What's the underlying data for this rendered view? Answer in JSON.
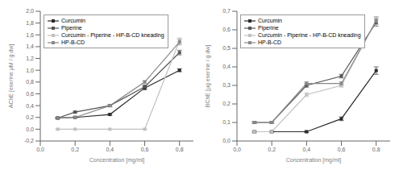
{
  "chart_data": [
    {
      "type": "line",
      "x_label": "Concentration [mg/ml]",
      "y_label": "AChE [eserine μM / g dw]",
      "x": [
        0.1,
        0.2,
        0.4,
        0.6,
        0.8
      ],
      "xlim": [
        0.0,
        0.88
      ],
      "xticks": [
        {
          "value": 0.0,
          "label": "0,0"
        },
        {
          "value": 0.2,
          "label": "0,2"
        },
        {
          "value": 0.4,
          "label": "0,4"
        },
        {
          "value": 0.6,
          "label": "0,6"
        },
        {
          "value": 0.8,
          "label": "0,8"
        }
      ],
      "ylim": [
        -0.2,
        2.0
      ],
      "yticks": [
        {
          "value": -0.2,
          "label": "-0,2"
        },
        {
          "value": 0.0,
          "label": "0,0"
        },
        {
          "value": 0.2,
          "label": "0,2"
        },
        {
          "value": 0.4,
          "label": "0,4"
        },
        {
          "value": 0.6,
          "label": "0,6"
        },
        {
          "value": 0.8,
          "label": "0,8"
        },
        {
          "value": 1.0,
          "label": "1,0"
        },
        {
          "value": 1.2,
          "label": "1,2"
        },
        {
          "value": 1.4,
          "label": "1,4"
        },
        {
          "value": 1.6,
          "label": "1,6"
        },
        {
          "value": 1.8,
          "label": "1,8"
        },
        {
          "value": 2.0,
          "label": "2,0"
        }
      ],
      "grid": false,
      "legend": "upper left",
      "series": [
        {
          "name": "Curcumin",
          "color": "#2b2b2b",
          "marker": "square",
          "line_style": "solid",
          "values": [
            0.19,
            0.2,
            0.25,
            0.7,
            1.0
          ],
          "yerr": [
            0.01,
            0.01,
            0.015,
            0.03,
            0.025
          ]
        },
        {
          "name": "Piperine",
          "color": "#555555",
          "marker": "square",
          "line_style": "solid",
          "values": [
            0.19,
            0.29,
            0.4,
            0.72,
            1.3
          ],
          "yerr": [
            0.01,
            0.015,
            0.02,
            0.03,
            0.04
          ]
        },
        {
          "name": "Curcumin - Piperine - HP-B-CD kneading",
          "color": "#c0c0c0",
          "marker": "square",
          "line_style": "solid",
          "values": [
            0.0,
            0.0,
            0.0,
            0.0,
            1.5
          ],
          "yerr": [
            0.003,
            0.003,
            0.003,
            0.003,
            0.05
          ]
        },
        {
          "name": "HP-B-CD",
          "color": "#888888",
          "marker": "square",
          "line_style": "solid",
          "values": [
            0.19,
            0.2,
            0.4,
            0.8,
            1.48
          ],
          "yerr": [
            0.01,
            0.01,
            0.015,
            0.025,
            0.05
          ]
        }
      ]
    },
    {
      "type": "line",
      "x_label": "Concentration [mg/ml]",
      "y_label": "BChE [μg eserine / g dw]",
      "x": [
        0.1,
        0.2,
        0.4,
        0.6,
        0.8
      ],
      "xlim": [
        0.0,
        0.88
      ],
      "xticks": [
        {
          "value": 0.0,
          "label": "0,0"
        },
        {
          "value": 0.2,
          "label": "0,2"
        },
        {
          "value": 0.4,
          "label": "0,4"
        },
        {
          "value": 0.6,
          "label": "0,6"
        },
        {
          "value": 0.8,
          "label": "0,8"
        }
      ],
      "ylim": [
        0.0,
        0.7
      ],
      "yticks": [
        {
          "value": 0.0,
          "label": "0,0"
        },
        {
          "value": 0.1,
          "label": "0,1"
        },
        {
          "value": 0.2,
          "label": "0,2"
        },
        {
          "value": 0.3,
          "label": "0,3"
        },
        {
          "value": 0.4,
          "label": "0,4"
        },
        {
          "value": 0.5,
          "label": "0,5"
        },
        {
          "value": 0.6,
          "label": "0,6"
        },
        {
          "value": 0.7,
          "label": "0,7"
        }
      ],
      "grid": false,
      "legend": "upper left",
      "series": [
        {
          "name": "Curcumin",
          "color": "#2b2b2b",
          "marker": "square",
          "line_style": "solid",
          "values": [
            0.05,
            0.05,
            0.05,
            0.12,
            0.38
          ],
          "yerr": [
            0.005,
            0.005,
            0.005,
            0.01,
            0.02
          ]
        },
        {
          "name": "Piperine",
          "color": "#555555",
          "marker": "square",
          "line_style": "solid",
          "values": [
            0.1,
            0.1,
            0.3,
            0.35,
            0.64
          ],
          "yerr": [
            0.005,
            0.005,
            0.01,
            0.01,
            0.02
          ]
        },
        {
          "name": "Curcumin - Piperine - HP-B-CD kneading",
          "color": "#c0c0c0",
          "marker": "square",
          "line_style": "solid",
          "values": [
            0.05,
            0.05,
            0.25,
            0.3,
            0.65
          ],
          "yerr": [
            0.005,
            0.005,
            0.01,
            0.01,
            0.02
          ]
        },
        {
          "name": "HP-B-CD",
          "color": "#888888",
          "marker": "square",
          "line_style": "solid",
          "values": [
            0.1,
            0.1,
            0.31,
            0.31,
            0.65
          ],
          "yerr": [
            0.005,
            0.005,
            0.01,
            0.01,
            0.02
          ]
        }
      ]
    }
  ]
}
